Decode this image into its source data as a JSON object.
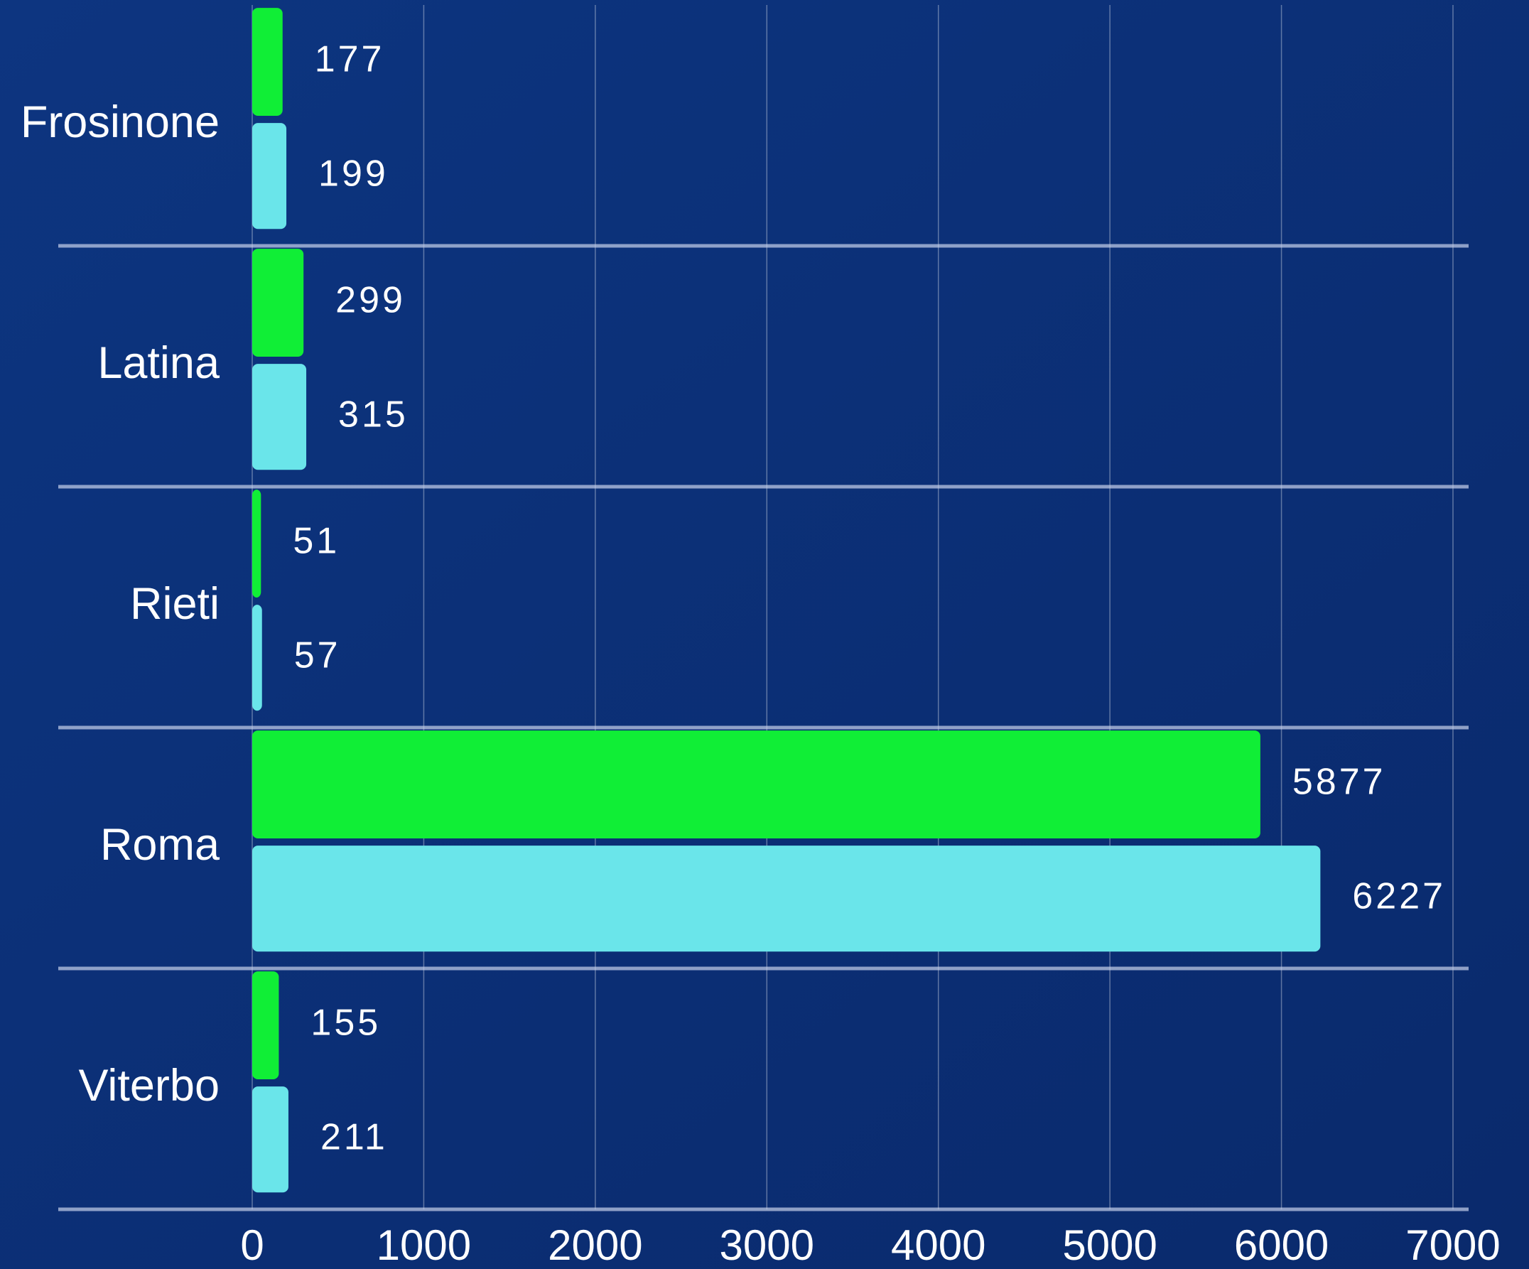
{
  "chart_data": {
    "type": "bar",
    "orientation": "horizontal",
    "categories": [
      "Frosinone",
      "Latina",
      "Rieti",
      "Roma",
      "Viterbo"
    ],
    "series": [
      {
        "color": "#10ee36",
        "values": [
          177,
          299,
          51,
          5877,
          155
        ]
      },
      {
        "color": "#6ae5ea",
        "values": [
          199,
          315,
          57,
          6227,
          211
        ]
      }
    ],
    "xlim": [
      0,
      7000
    ],
    "xticks": [
      0,
      1000,
      2000,
      3000,
      4000,
      5000,
      6000,
      7000
    ],
    "grid": true
  }
}
